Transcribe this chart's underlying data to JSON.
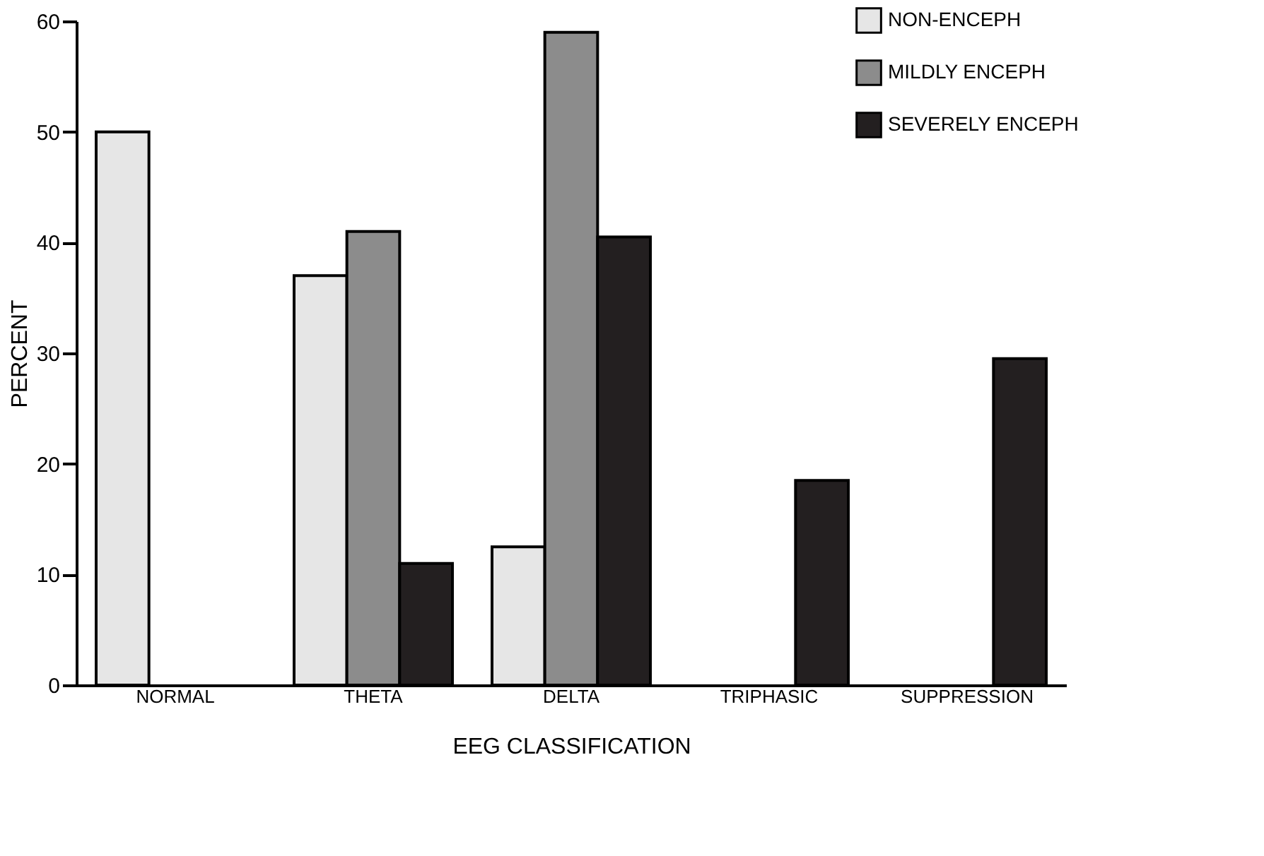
{
  "chart_data": {
    "type": "bar",
    "xlabel": "EEG CLASSIFICATION",
    "ylabel": "PERCENT",
    "categories": [
      "NORMAL",
      "THETA",
      "DELTA",
      "TRIPHASIC",
      "SUPPRESSION"
    ],
    "series": [
      {
        "name": "NON-ENCEPH",
        "color": "#e6e6e6",
        "values": [
          50,
          37,
          12.5,
          null,
          null
        ]
      },
      {
        "name": "MILDLY ENCEPH",
        "color": "#8c8c8c",
        "values": [
          null,
          41,
          59,
          null,
          null
        ]
      },
      {
        "name": "SEVERELY ENCEPH",
        "color": "#231f20",
        "values": [
          null,
          11,
          40.5,
          18.5,
          29.5
        ]
      }
    ],
    "ylim": [
      0,
      60
    ],
    "yticks": [
      0,
      10,
      20,
      30,
      40,
      50,
      60
    ],
    "grid": false,
    "legend": "top right"
  }
}
